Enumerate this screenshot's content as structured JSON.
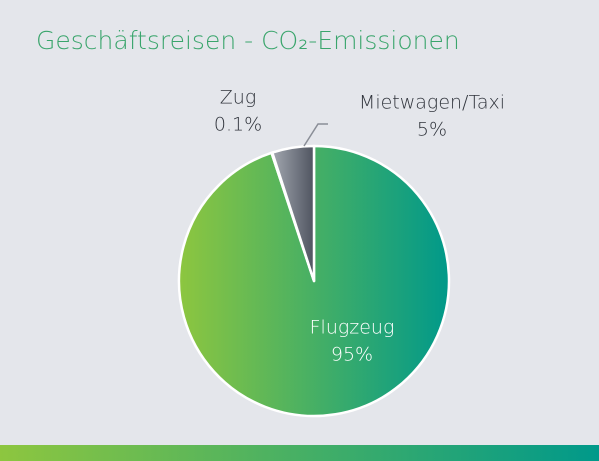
{
  "chart_data": {
    "type": "pie",
    "title": "Geschäftsreisen - CO₂-Emissionen",
    "categories": [
      "Flugzeug",
      "Zug",
      "Mietwagen/Taxi"
    ],
    "values": [
      95,
      0.1,
      5
    ],
    "value_labels": [
      "95%",
      "0.1%",
      "5%"
    ],
    "colors": [
      [
        "#8dc63f",
        "#00998a"
      ],
      [
        "#d5d8de",
        "#c4c7ce"
      ],
      [
        "#a3a7b0",
        "#4f5460"
      ]
    ]
  }
}
